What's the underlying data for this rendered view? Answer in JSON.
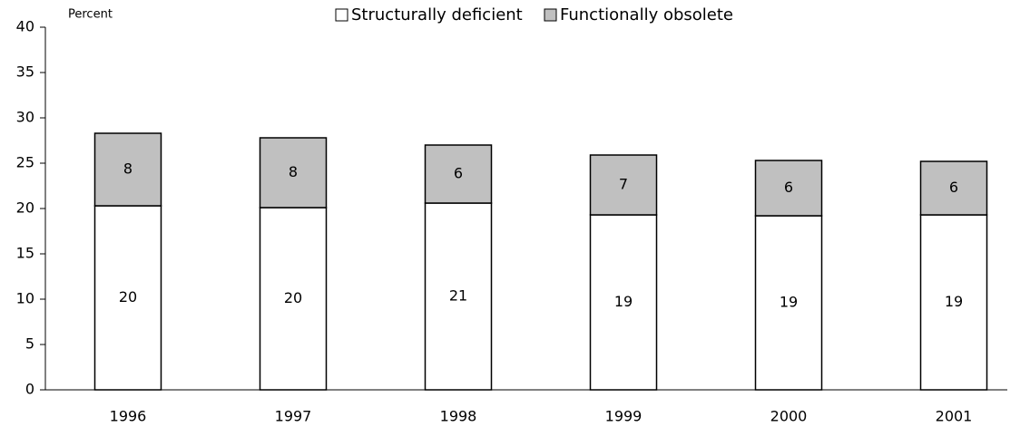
{
  "chart_data": {
    "type": "stacked_bar",
    "y_label": "Percent",
    "categories": [
      "1996",
      "1997",
      "1998",
      "1999",
      "2000",
      "2001"
    ],
    "series": [
      {
        "name": "Structurally deficient",
        "color": "#ffffff",
        "values": [
          20.3,
          20.1,
          20.6,
          19.3,
          19.2,
          19.3
        ],
        "value_labels": [
          "20",
          "20",
          "21",
          "19",
          "19",
          "19"
        ]
      },
      {
        "name": "Functionally obsolete",
        "color": "#c0c0c0",
        "values": [
          8.0,
          7.7,
          6.4,
          6.6,
          6.1,
          5.9
        ],
        "value_labels": [
          "8",
          "8",
          "6",
          "7",
          "6",
          "6"
        ]
      }
    ],
    "ylim": [
      0,
      40
    ],
    "yticks": [
      0,
      5,
      10,
      15,
      20,
      25,
      30,
      35,
      40
    ],
    "legend": "top"
  }
}
